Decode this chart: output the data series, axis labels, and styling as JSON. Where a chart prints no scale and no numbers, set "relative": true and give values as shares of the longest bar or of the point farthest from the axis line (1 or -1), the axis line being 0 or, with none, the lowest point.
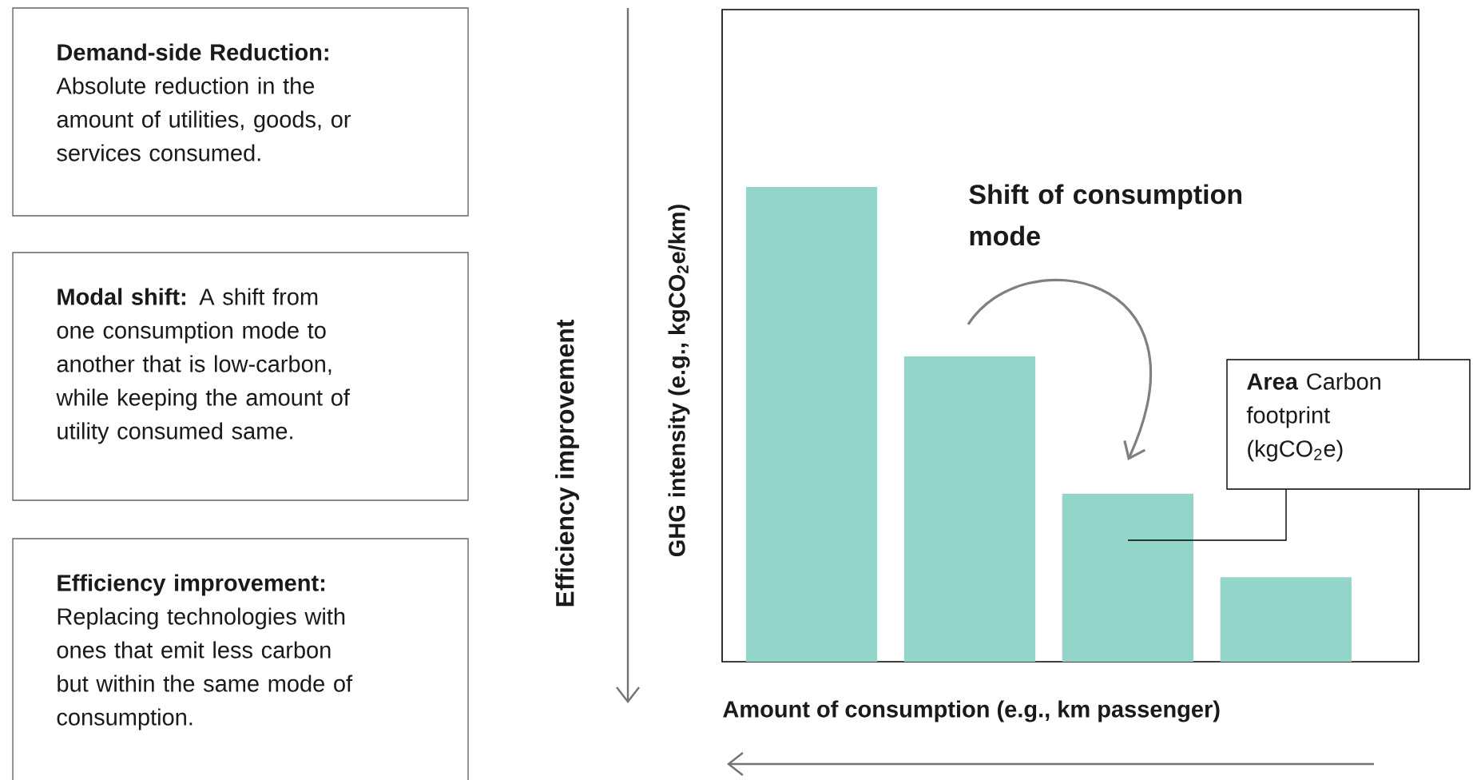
{
  "chart_data": {
    "type": "bar",
    "relative": true,
    "categories": [
      null,
      null,
      null,
      null
    ],
    "values": [
      1,
      0.643,
      0.354,
      0.178
    ],
    "color": "#93d5c8",
    "xlabel": "Amount of consumption (e.g., km passenger)",
    "ylabel": "GHG intensity (e.g., kgCO$_{2}$e/km)",
    "annotations": [
      "**Demand-side Reduction:** Absolute reduction in the amount of utilities, goods, or services consumed.",
      "**Modal shift:** A shift from one consumption mode to another that is low-carbon, while keeping the amount of utility consumed same.",
      "**Efficiency improvement:** Replacing technologies with ones that emit less carbon but within the same mode of consumption.",
      "Efficiency improvement",
      "Shift of consumption mode",
      "**Area** Carbon footprint (kgCO$_{2}$e)"
    ]
  }
}
